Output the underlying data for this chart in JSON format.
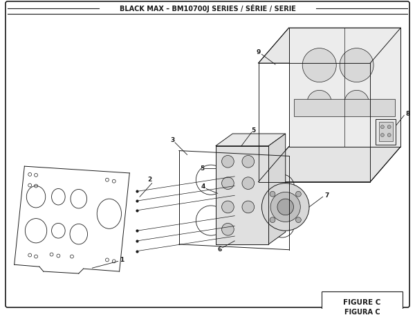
{
  "title": "BLACK MAX – BM10700J SERIES / SÉRIE / SERIE",
  "figure_label": "FIGURE C",
  "figura_label": "FIGURA C",
  "bg_color": "#ffffff",
  "line_color": "#1a1a1a",
  "lw": 0.7
}
